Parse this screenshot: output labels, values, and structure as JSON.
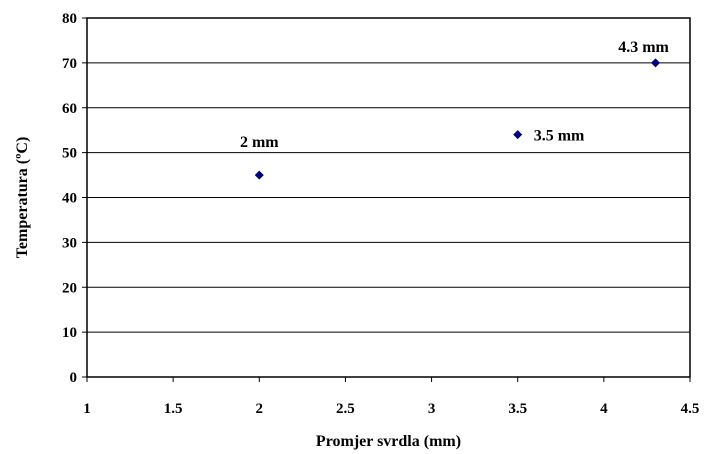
{
  "chart_data": {
    "type": "scatter",
    "title": "",
    "xlabel": "Promjer svrdla (mm)",
    "ylabel": "Temperatura (ºC)",
    "xlim": [
      1,
      4.5
    ],
    "ylim": [
      0,
      80
    ],
    "x_ticks": [
      "1",
      "1.5",
      "2",
      "2.5",
      "3",
      "3.5",
      "4",
      "4.5"
    ],
    "y_ticks": [
      "0",
      "10",
      "20",
      "30",
      "40",
      "50",
      "60",
      "70",
      "80"
    ],
    "grid": "horizontal",
    "legend": "none",
    "marker": "diamond",
    "marker_color": "#00007a",
    "points": [
      {
        "x": 2,
        "y": 45,
        "label": "2 mm"
      },
      {
        "x": 3.5,
        "y": 54,
        "label": "3.5 mm"
      },
      {
        "x": 4.3,
        "y": 70,
        "label": "4.3 mm"
      }
    ]
  }
}
